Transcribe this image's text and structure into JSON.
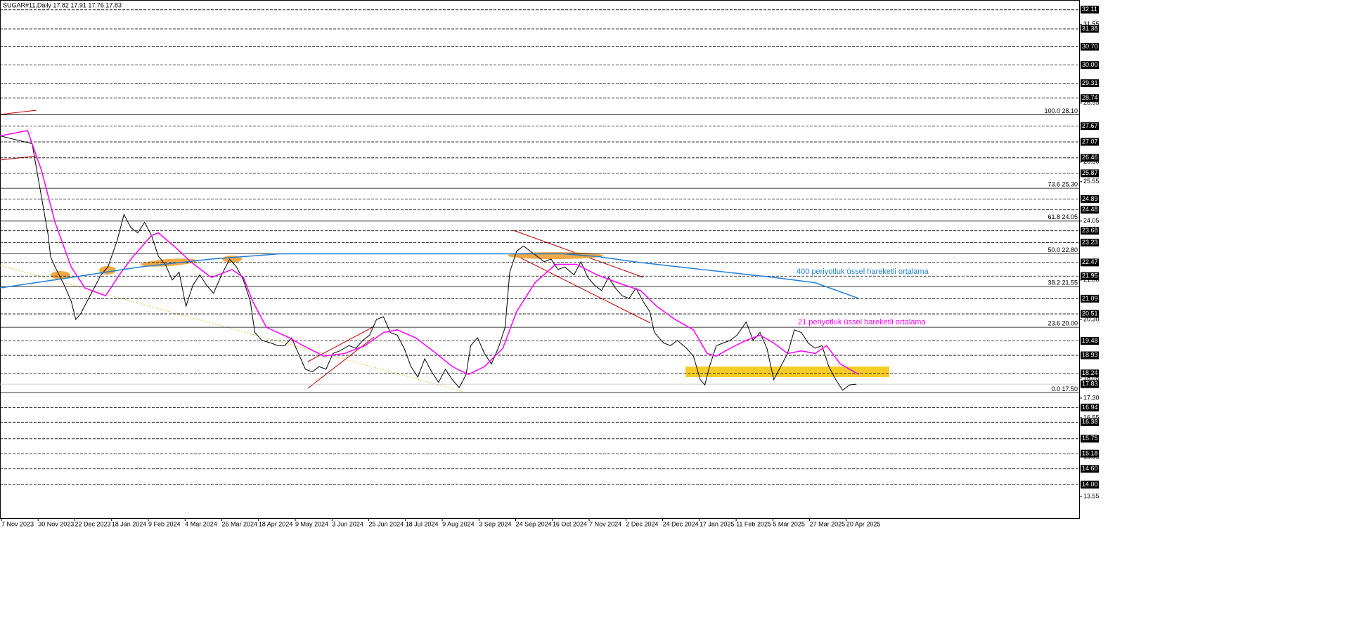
{
  "chart_data": {
    "type": "line",
    "title": "SUGAR#11,Daily  17.82 17.91 17.76 17.83",
    "xlim": [
      0,
      470
    ],
    "ylim": [
      12.72,
      32.48
    ],
    "xticks": [
      {
        "value": 0,
        "label": "7 Nov 2023"
      },
      {
        "value": 16,
        "label": "30 Nov 2023"
      },
      {
        "value": 32,
        "label": "22 Dec 2023"
      },
      {
        "value": 48,
        "label": "18 Jan 2024"
      },
      {
        "value": 64,
        "label": "9 Feb 2024"
      },
      {
        "value": 80,
        "label": "4 Mar 2024"
      },
      {
        "value": 96,
        "label": "26 Mar 2024"
      },
      {
        "value": 112,
        "label": "18 Apr 2024"
      },
      {
        "value": 128,
        "label": "9 May 2024"
      },
      {
        "value": 144,
        "label": "3 Jun 2024"
      },
      {
        "value": 160,
        "label": "25 Jun 2024"
      },
      {
        "value": 176,
        "label": "18 Jul 2024"
      },
      {
        "value": 192,
        "label": "9 Aug 2024"
      },
      {
        "value": 208,
        "label": "3 Sep 2024"
      },
      {
        "value": 224,
        "label": "24 Sep 2024"
      },
      {
        "value": 240,
        "label": "16 Oct 2024"
      },
      {
        "value": 256,
        "label": "7 Nov 2024"
      },
      {
        "value": 272,
        "label": "2 Dec 2024"
      },
      {
        "value": 288,
        "label": "24 Dec 2024"
      },
      {
        "value": 304,
        "label": "17 Jan 2025"
      },
      {
        "value": 320,
        "label": "11 Feb 2025"
      },
      {
        "value": 336,
        "label": "5 Mar 2025"
      },
      {
        "value": 352,
        "label": "27 Mar 2025"
      },
      {
        "value": 368,
        "label": "20 Apr 2025"
      }
    ],
    "yticks": [
      31.55,
      28.55,
      {
        "value": 26.3,
        "label": "26.30"
      },
      25.55,
      24.05,
      {
        "value": 21.8,
        "label": "21.80"
      },
      {
        "value": 20.3,
        "label": "20.30"
      },
      18.05,
      {
        "value": 17.3,
        "label": "17.30"
      },
      16.55,
      15.05,
      13.55
    ],
    "levels": [
      32.11,
      31.38,
      {
        "value": 30.7,
        "label": "30.70"
      },
      {
        "value": 30,
        "label": "30.00"
      },
      29.31,
      28.74,
      27.67,
      27.07,
      26.46,
      25.87,
      24.89,
      24.48,
      23.68,
      23.23,
      22.47,
      21.95,
      21.09,
      20.51,
      19.48,
      18.93,
      18.24,
      17.83,
      16.94,
      16.38,
      15.75,
      15.18,
      {
        "value": 14.6,
        "label": "14.60"
      },
      {
        "value": 14,
        "label": "14.00"
      }
    ],
    "fib_levels": [
      {
        "value": 28.1,
        "label": "100.0 28.10"
      },
      {
        "value": 25.3,
        "label": "73.6 25.30"
      },
      {
        "value": 24.05,
        "label": "61.8 24.05"
      },
      {
        "value": 22.8,
        "label": "50.0 22.80"
      },
      {
        "value": 21.55,
        "label": "38.2 21.55"
      },
      {
        "value": 20,
        "label": "23.6 20.00"
      },
      {
        "value": 17.5,
        "label": "0.0 17.50"
      }
    ],
    "annotations": [
      "400 periyotluk üssel hareketli ortalama",
      "21 periyotluk üssel hareketli ortalama"
    ],
    "series": [
      {
        "color": "#000000",
        "x": [
          0,
          14,
          16,
          18,
          21,
          22,
          24,
          28,
          31,
          33,
          35,
          38,
          41,
          44,
          47,
          51,
          54,
          57,
          60,
          63,
          66,
          69,
          72,
          75,
          78,
          81,
          84,
          87,
          90,
          93,
          96,
          100,
          103,
          106,
          109,
          111,
          114,
          118,
          121,
          124,
          127,
          130,
          133,
          136,
          139,
          142,
          145,
          148,
          152,
          155,
          158,
          161,
          164,
          167,
          170,
          173,
          176,
          179,
          182,
          185,
          188,
          191,
          194,
          197,
          200,
          203,
          205,
          208,
          211,
          214,
          217,
          220,
          222,
          225,
          228,
          231,
          234,
          237,
          240,
          243,
          246,
          250,
          253,
          256,
          259,
          262,
          265,
          268,
          271,
          274,
          277,
          280,
          283,
          285,
          289,
          292,
          295,
          299,
          302,
          305,
          307,
          309,
          312,
          315,
          318,
          321,
          325,
          328,
          331,
          334,
          337,
          340,
          343,
          346,
          349,
          352,
          355,
          358,
          361,
          364,
          367,
          370,
          373
        ],
        "values": [
          27.3,
          27.0,
          26.0,
          25.0,
          23.5,
          22.7,
          22.3,
          21.6,
          21.0,
          20.3,
          20.5,
          21.0,
          21.5,
          22.0,
          22.3,
          23.3,
          24.3,
          23.8,
          23.6,
          24.0,
          23.5,
          22.7,
          22.4,
          21.8,
          22.1,
          20.8,
          21.6,
          22.0,
          21.6,
          21.3,
          21.9,
          22.6,
          22.3,
          21.8,
          21.0,
          19.8,
          19.5,
          19.4,
          19.3,
          19.3,
          19.6,
          19.0,
          18.4,
          18.3,
          18.5,
          18.4,
          19.0,
          19.1,
          19.3,
          19.2,
          19.5,
          19.7,
          20.3,
          20.4,
          19.8,
          19.7,
          19.2,
          18.5,
          18.1,
          18.8,
          18.3,
          17.9,
          18.4,
          18.0,
          17.7,
          18.2,
          19.3,
          19.6,
          19.0,
          18.6,
          19.2,
          20.0,
          22.1,
          22.9,
          23.1,
          22.9,
          22.7,
          22.5,
          22.6,
          22.2,
          22.3,
          22.0,
          22.5,
          21.9,
          21.6,
          21.4,
          21.9,
          21.5,
          21.2,
          21.1,
          21.5,
          21.0,
          20.6,
          19.8,
          19.4,
          19.3,
          19.5,
          19.2,
          18.9,
          18.0,
          17.8,
          18.5,
          19.3,
          19.4,
          19.5,
          19.7,
          20.2,
          19.5,
          19.8,
          19.2,
          18.0,
          18.5,
          19.0,
          19.9,
          19.8,
          19.4,
          19.2,
          19.3,
          18.5,
          18.0,
          17.6,
          17.8,
          17.83
        ]
      },
      {
        "color": "#ff00ff",
        "x": [
          0,
          12,
          18,
          24,
          31,
          37,
          46,
          52,
          58,
          66,
          69,
          77,
          83,
          92,
          101,
          106,
          110,
          116,
          126,
          132,
          141,
          150,
          159,
          167,
          173,
          181,
          190,
          197,
          204,
          211,
          219,
          225,
          233,
          242,
          251,
          260,
          269,
          279,
          286,
          294,
          302,
          308,
          312,
          318,
          325,
          331,
          337,
          343,
          349,
          355,
          360,
          366,
          374
        ],
        "values": [
          27.3,
          27.5,
          26.0,
          24.0,
          22.3,
          21.5,
          21.2,
          22.0,
          22.7,
          23.5,
          23.6,
          23.0,
          22.5,
          21.9,
          22.2,
          21.9,
          21.0,
          20.0,
          19.6,
          19.3,
          18.9,
          19.0,
          19.3,
          19.8,
          19.9,
          19.6,
          19.0,
          18.5,
          18.2,
          18.5,
          19.2,
          20.6,
          21.7,
          22.4,
          22.4,
          22.0,
          21.7,
          21.4,
          20.8,
          20.3,
          19.9,
          19.0,
          18.9,
          19.2,
          19.5,
          19.7,
          19.4,
          19.0,
          19.1,
          19.0,
          19.3,
          18.6,
          18.2
        ]
      },
      {
        "color": "#1e7fd8",
        "x": [
          0,
          31,
          61,
          92,
          122,
          153,
          184,
          214,
          245,
          260,
          276,
          306,
          337,
          355,
          374
        ],
        "values": [
          21.5,
          21.9,
          22.3,
          22.6,
          22.8,
          22.8,
          22.8,
          22.8,
          22.8,
          22.7,
          22.5,
          22.2,
          21.9,
          21.7,
          21.1
        ]
      }
    ]
  }
}
